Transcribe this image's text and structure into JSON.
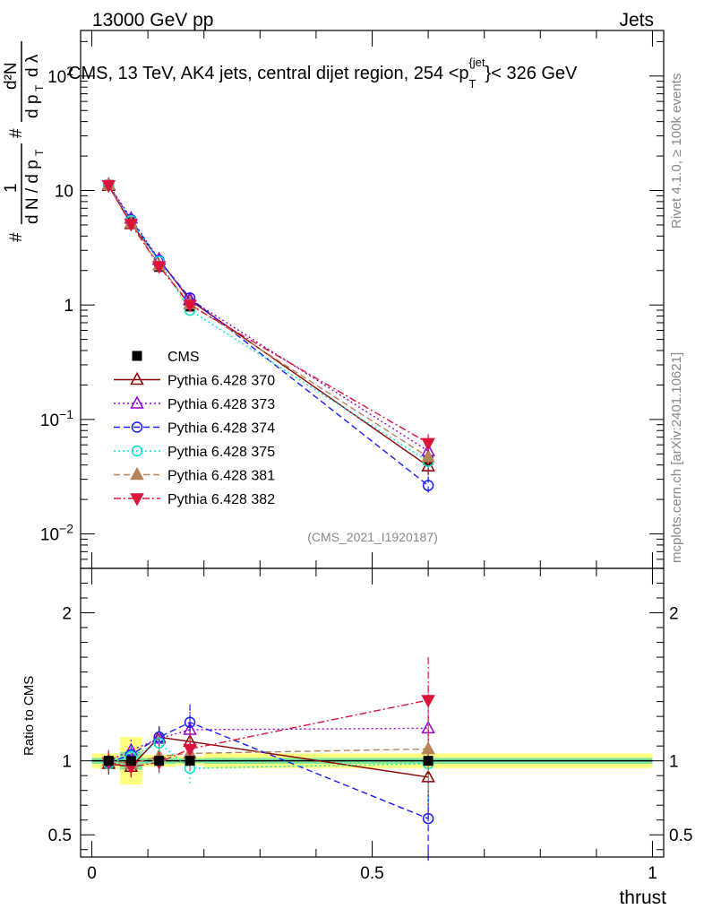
{
  "header": {
    "left": "13000 GeV pp",
    "right": "Jets"
  },
  "title": {
    "prefix": "CMS, 13 TeV, AK4 jets, central dijet region, 254 <p",
    "sub": "T",
    "sup": "{jet",
    "suffix": "}< 326 GeV"
  },
  "side_labels": {
    "rivet": "Rivet 4.1.0, ≥ 100k events",
    "mcplots": "mcplots.cern.ch [arXiv:2401.10621]"
  },
  "analysis_id": "(CMS_2021_I1920187)",
  "colors": {
    "data": "#000000",
    "p370": "#8b0000",
    "p373": "#9400d3",
    "p374": "#1a1aff",
    "p375": "#00e5cc",
    "p381": "#b5835a",
    "p382": "#dc143c",
    "band_inner": "#7fe8a0",
    "band_outer": "#ffff80"
  },
  "chart_data": [
    {
      "type": "line",
      "panel": "main",
      "yscale": "log",
      "ylabel": "#frac{1}{dN/dp_T} #frac{d^2N}{dp_T dλ}",
      "xlim": [
        -0.02,
        1.02
      ],
      "ylim": [
        0.005,
        250
      ],
      "ytick_labels": [
        "10^-2",
        "10^-1",
        "1",
        "10",
        "10^2"
      ],
      "x": [
        0.03,
        0.07,
        0.12,
        0.175,
        0.6
      ],
      "series": [
        {
          "name": "CMS",
          "values": [
            11.2,
            5.3,
            2.15,
            0.97,
            0.044
          ]
        },
        {
          "name": "Pythia 6.428 370",
          "values": [
            11.0,
            5.1,
            2.5,
            1.1,
            0.039
          ]
        },
        {
          "name": "Pythia 6.428 373",
          "values": [
            11.3,
            5.7,
            2.48,
            1.12,
            0.053
          ]
        },
        {
          "name": "Pythia 6.428 374",
          "values": [
            11.1,
            5.55,
            2.45,
            1.15,
            0.0265
          ]
        },
        {
          "name": "Pythia 6.428 375",
          "values": [
            11.0,
            5.45,
            2.4,
            0.9,
            0.043
          ]
        },
        {
          "name": "Pythia 6.428 381",
          "values": [
            11.2,
            5.2,
            2.22,
            1.02,
            0.047
          ]
        },
        {
          "name": "Pythia 6.428 382",
          "values": [
            11.1,
            5.1,
            2.18,
            1.0,
            0.062
          ]
        }
      ]
    },
    {
      "type": "line",
      "panel": "ratio",
      "ylabel": "Ratio to CMS",
      "xlabel": "thrust",
      "xlim": [
        -0.02,
        1.02
      ],
      "ylim": [
        0.35,
        2.3
      ],
      "ytick_labels": [
        "0.5",
        "1",
        "2"
      ],
      "xtick_labels": [
        "0",
        "0.5",
        "1"
      ],
      "x": [
        0.03,
        0.07,
        0.12,
        0.175,
        0.6
      ],
      "band": {
        "edges": [
          0.0,
          0.05,
          0.09,
          0.15,
          0.2,
          1.0
        ],
        "inner": [
          0.02,
          0.06,
          0.02,
          0.015,
          0.02
        ],
        "outer": [
          0.05,
          0.16,
          0.04,
          0.03,
          0.05
        ]
      },
      "series": [
        {
          "name": "Pythia 6.428 370",
          "values": [
            0.98,
            0.96,
            1.16,
            1.13,
            0.89
          ]
        },
        {
          "name": "Pythia 6.428 373",
          "values": [
            1.0,
            1.07,
            1.15,
            1.21,
            1.22
          ]
        },
        {
          "name": "Pythia 6.428 374",
          "values": [
            0.99,
            1.04,
            1.16,
            1.26,
            0.61
          ]
        },
        {
          "name": "Pythia 6.428 375",
          "values": [
            0.98,
            1.03,
            1.12,
            0.95,
            0.98
          ]
        },
        {
          "name": "Pythia 6.428 381",
          "values": [
            1.0,
            0.98,
            1.03,
            1.05,
            1.08
          ]
        },
        {
          "name": "Pythia 6.428 382",
          "values": [
            0.99,
            0.96,
            0.99,
            1.08,
            1.41
          ]
        }
      ]
    }
  ],
  "legend": [
    {
      "label": "CMS"
    },
    {
      "label": "Pythia 6.428 370"
    },
    {
      "label": "Pythia 6.428 373"
    },
    {
      "label": "Pythia 6.428 374"
    },
    {
      "label": "Pythia 6.428 375"
    },
    {
      "label": "Pythia 6.428 381"
    },
    {
      "label": "Pythia 6.428 382"
    }
  ]
}
